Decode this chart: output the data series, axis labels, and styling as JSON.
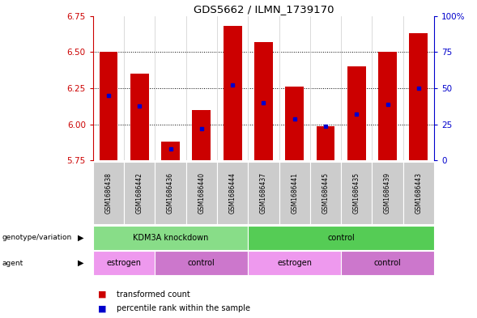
{
  "title": "GDS5662 / ILMN_1739170",
  "samples": [
    "GSM1686438",
    "GSM1686442",
    "GSM1686436",
    "GSM1686440",
    "GSM1686444",
    "GSM1686437",
    "GSM1686441",
    "GSM1686445",
    "GSM1686435",
    "GSM1686439",
    "GSM1686443"
  ],
  "bar_values": [
    6.5,
    6.35,
    5.88,
    6.1,
    6.68,
    6.57,
    6.26,
    5.99,
    6.4,
    6.5,
    6.63
  ],
  "percentile_values": [
    6.2,
    6.13,
    5.83,
    5.97,
    6.27,
    6.15,
    6.04,
    5.99,
    6.07,
    6.14,
    6.25
  ],
  "ymin": 5.75,
  "ymax": 6.75,
  "yticks": [
    5.75,
    6.0,
    6.25,
    6.5,
    6.75
  ],
  "right_yticks": [
    0,
    25,
    50,
    75,
    100
  ],
  "right_yticklabels": [
    "0",
    "25",
    "50",
    "75",
    "100%"
  ],
  "bar_color": "#cc0000",
  "percentile_color": "#0000cc",
  "genotype_groups": [
    {
      "label": "KDM3A knockdown",
      "start": 0,
      "end": 5,
      "color": "#88dd88"
    },
    {
      "label": "control",
      "start": 5,
      "end": 11,
      "color": "#55cc55"
    }
  ],
  "agent_groups": [
    {
      "label": "estrogen",
      "start": 0,
      "end": 2,
      "color": "#ee99ee"
    },
    {
      "label": "control",
      "start": 2,
      "end": 5,
      "color": "#cc77cc"
    },
    {
      "label": "estrogen",
      "start": 5,
      "end": 8,
      "color": "#ee99ee"
    },
    {
      "label": "control",
      "start": 8,
      "end": 11,
      "color": "#cc77cc"
    }
  ],
  "legend_label_count": "transformed count",
  "legend_label_perc": "percentile rank within the sample",
  "left_axis_color": "#cc0000",
  "right_axis_color": "#0000cc",
  "background_color": "#ffffff",
  "grid_color": "#000000",
  "sample_bg_color": "#cccccc",
  "sample_bg_color2": "#bbbbbb"
}
